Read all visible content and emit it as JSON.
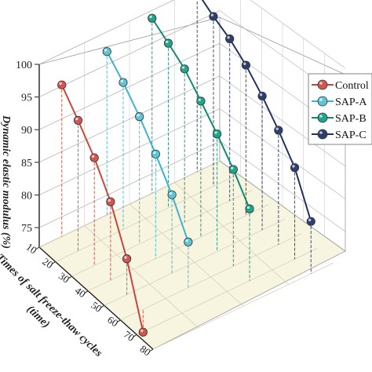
{
  "chart_data": {
    "type": "scatter",
    "chart_kind": "3d-line-with-drop-lines",
    "x": [
      10,
      20,
      30,
      40,
      50,
      60,
      70,
      80
    ],
    "xlabel_line1": "Times of salt freeze-thaw cycles",
    "xlabel_line2": "(time)",
    "zlabel": "Dynamic elastic modulus (%)",
    "zlim": [
      72,
      100
    ],
    "zticks": [
      75,
      80,
      85,
      90,
      95,
      100
    ],
    "grid": true,
    "legend_position": "right",
    "series": [
      {
        "name": "Control",
        "color": "#d2564f",
        "line_color": "#c9463d",
        "points": [
          {
            "x": 10,
            "y": 95.2
          },
          {
            "x": 20,
            "y": 92.0
          },
          {
            "x": 30,
            "y": 88.5
          },
          {
            "x": 40,
            "y": 84.0
          },
          {
            "x": 50,
            "y": 77.5
          },
          {
            "x": 60,
            "y": 68.5
          }
        ]
      },
      {
        "name": "SAP-A",
        "color": "#5fc4d6",
        "line_color": "#3fb3c9",
        "points": [
          {
            "x": 10,
            "y": 97.0
          },
          {
            "x": 20,
            "y": 94.5
          },
          {
            "x": 30,
            "y": 91.5
          },
          {
            "x": 40,
            "y": 88.0
          },
          {
            "x": 50,
            "y": 84.0
          },
          {
            "x": 60,
            "y": 79.0
          }
        ]
      },
      {
        "name": "SAP-B",
        "color": "#1fa58c",
        "line_color": "#138a73",
        "points": [
          {
            "x": 10,
            "y": 98.8
          },
          {
            "x": 20,
            "y": 97.2
          },
          {
            "x": 30,
            "y": 95.5
          },
          {
            "x": 40,
            "y": 92.8
          },
          {
            "x": 50,
            "y": 90.0
          },
          {
            "x": 60,
            "y": 86.8
          },
          {
            "x": 70,
            "y": 83.0
          }
        ]
      },
      {
        "name": "SAP-C",
        "color": "#2d3f6e",
        "line_color": "#23335d",
        "points": [
          {
            "x": 10,
            "y": 99.5
          },
          {
            "x": 20,
            "y": 98.0
          },
          {
            "x": 30,
            "y": 96.8
          },
          {
            "x": 40,
            "y": 95.0
          },
          {
            "x": 50,
            "y": 92.5
          },
          {
            "x": 60,
            "y": 89.5
          },
          {
            "x": 70,
            "y": 86.0
          },
          {
            "x": 80,
            "y": 80.0
          }
        ]
      }
    ]
  }
}
